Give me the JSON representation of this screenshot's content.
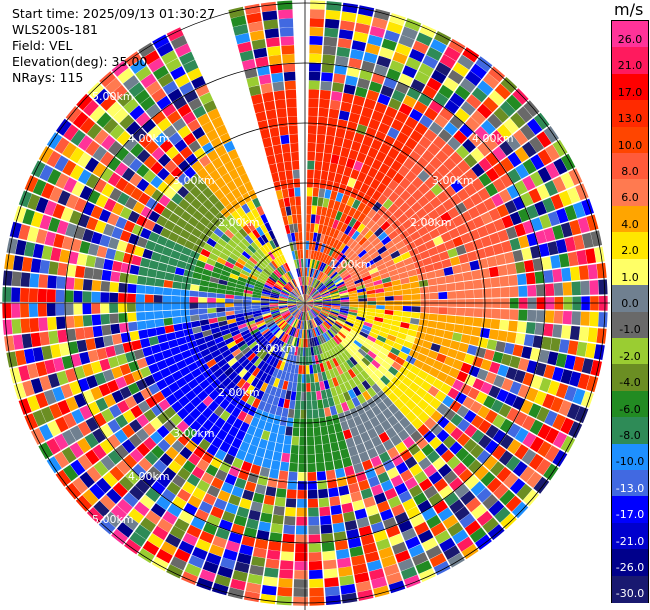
{
  "info": {
    "start_time": "Start time: 2025/09/13 01:30:27",
    "site": "WLS200s-181",
    "field": "Field: VEL",
    "elevation": "Elevation(deg): 35.00",
    "nrays": "NRays: 115"
  },
  "colorbar": {
    "unit": "m/s",
    "labels": [
      "26.0",
      "21.0",
      "17.0",
      "13.0",
      "10.0",
      "8.0",
      "6.0",
      "4.0",
      "2.0",
      "1.0",
      "0.0",
      "-1.0",
      "-2.0",
      "-4.0",
      "-6.0",
      "-8.0",
      "-10.0",
      "-13.0",
      "-17.0",
      "-21.0",
      "-26.0",
      "-30.0"
    ],
    "colors": [
      "#ff3399",
      "#ff1a5e",
      "#ff0000",
      "#ff2a00",
      "#ff4500",
      "#ff5a3a",
      "#ff7a50",
      "#ffa500",
      "#ffe600",
      "#ffff66",
      "#708090",
      "#696969",
      "#9acd32",
      "#6b8e23",
      "#228b22",
      "#2e8b57",
      "#1e90ff",
      "#4169e1",
      "#0000ff",
      "#0000cd",
      "#00008b",
      "#191970"
    ]
  },
  "range_rings": {
    "labels": [
      "1.00km",
      "2.00km",
      "3.00km",
      "4.00km",
      "5.00km"
    ]
  },
  "sectors": [
    {
      "from": 0,
      "to": 35,
      "color": "#ff2a00",
      "inner": "#ff4500"
    },
    {
      "from": 35,
      "to": 75,
      "color": "#ff5a3a",
      "inner": "#ff7a50"
    },
    {
      "from": 75,
      "to": 95,
      "color": "#ff7a50",
      "inner": "#ffa500"
    },
    {
      "from": 95,
      "to": 120,
      "color": "#ffa500",
      "inner": "#ffe600"
    },
    {
      "from": 120,
      "to": 140,
      "color": "#ffe600",
      "inner": "#ffff66"
    },
    {
      "from": 140,
      "to": 165,
      "color": "#708090",
      "inner": "#9acd32"
    },
    {
      "from": 165,
      "to": 185,
      "color": "#228b22",
      "inner": "#2e8b57"
    },
    {
      "from": 185,
      "to": 205,
      "color": "#1e90ff",
      "inner": "#4169e1"
    },
    {
      "from": 205,
      "to": 260,
      "color": "#0000ff",
      "inner": "#0000cd"
    },
    {
      "from": 260,
      "to": 275,
      "color": "#1e90ff",
      "inner": "#4169e1"
    },
    {
      "from": 275,
      "to": 295,
      "color": "#2e8b57",
      "inner": "#228b22"
    },
    {
      "from": 295,
      "to": 320,
      "color": "#6b8e23",
      "inner": "#9acd32"
    },
    {
      "from": 320,
      "to": 335,
      "color": "#ffa500",
      "inner": "#ffe600"
    },
    {
      "from": 335,
      "to": 345,
      "color": "#ff5a3a",
      "inner": "#ff7a50"
    },
    {
      "from": 345,
      "to": 360,
      "color": "#ff2a00",
      "inner": "#ff4500"
    }
  ]
}
